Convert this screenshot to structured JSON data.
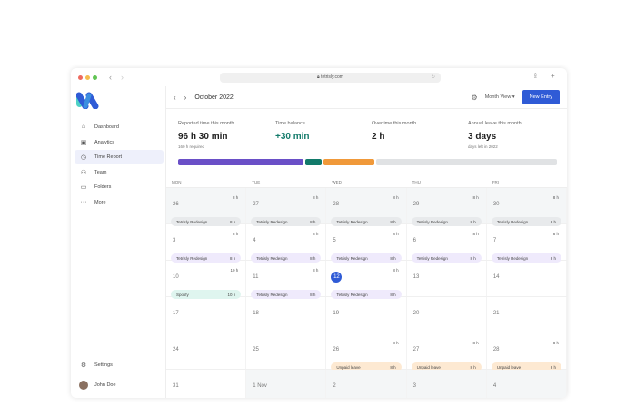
{
  "browser": {
    "url": "tetrisly.com",
    "back": "‹",
    "forward": "›"
  },
  "colors": {
    "accent": "#2f5bd6",
    "reported": "#6a4fc7",
    "balance": "#127a6a",
    "overtime": "#f0993a",
    "remaining": "#e0e2e4",
    "project": "#efeafc",
    "past": "#e8eaec",
    "spotify": "#dff5ef",
    "leave": "#fde9d2"
  },
  "sidebar": {
    "items": [
      {
        "label": "Dashboard",
        "icon": "home-icon"
      },
      {
        "label": "Analytics",
        "icon": "chart-icon"
      },
      {
        "label": "Time Report",
        "icon": "clock-icon",
        "active": true
      },
      {
        "label": "Team",
        "icon": "users-icon"
      },
      {
        "label": "Folders",
        "icon": "folder-icon"
      },
      {
        "label": "More",
        "icon": "more-icon"
      }
    ],
    "settings": "Settings",
    "user": "John Doe"
  },
  "header": {
    "month": "October 2022",
    "view": "Month View",
    "new_entry": "New Entry"
  },
  "stats": [
    {
      "label": "Reported time this month",
      "value": "96 h 30 min",
      "sub": "160 h required"
    },
    {
      "label": "Time balance",
      "value": "+30 min"
    },
    {
      "label": "Overtime this month",
      "value": "2 h"
    },
    {
      "label": "Annual leave this month",
      "value": "3 days",
      "sub": "days left in 2022"
    }
  ],
  "weekdays": [
    "MON",
    "TUE",
    "WED",
    "THU",
    "FRI"
  ],
  "weeks": [
    [
      {
        "d": "26",
        "h": "8 h",
        "e": "Tetrisly Redesign",
        "eh": "8 h",
        "t": "past",
        "g": 1
      },
      {
        "d": "27",
        "h": "8 h",
        "e": "Tetrisly Redesign",
        "eh": "8 h",
        "t": "past",
        "g": 1
      },
      {
        "d": "28",
        "h": "8 h",
        "e": "Tetrisly Redesign",
        "eh": "8 h",
        "t": "past",
        "g": 1
      },
      {
        "d": "29",
        "h": "8 h",
        "e": "Tetrisly Redesign",
        "eh": "8 h",
        "t": "past",
        "g": 1
      },
      {
        "d": "30",
        "h": "8 h",
        "e": "Tetrisly Redesign",
        "eh": "8 h",
        "t": "past",
        "g": 1
      }
    ],
    [
      {
        "d": "3",
        "h": "8 h",
        "e": "Tetrisly Redesign",
        "eh": "8 h",
        "t": "project"
      },
      {
        "d": "4",
        "h": "8 h",
        "e": "Tetrisly Redesign",
        "eh": "8 h",
        "t": "project"
      },
      {
        "d": "5",
        "h": "8 h",
        "e": "Tetrisly Redesign",
        "eh": "8 h",
        "t": "project"
      },
      {
        "d": "6",
        "h": "8 h",
        "e": "Tetrisly Redesign",
        "eh": "8 h",
        "t": "project"
      },
      {
        "d": "7",
        "h": "8 h",
        "e": "Tetrisly Redesign",
        "eh": "8 h",
        "t": "project"
      }
    ],
    [
      {
        "d": "10",
        "h": "10 h",
        "e": "Spotify",
        "eh": "10 h",
        "t": "spotify"
      },
      {
        "d": "11",
        "h": "8 h",
        "e": "Tetrisly Redesign",
        "eh": "8 h",
        "t": "project"
      },
      {
        "d": "12",
        "h": "8 h",
        "e": "Tetrisly Redesign",
        "eh": "8 h",
        "t": "project",
        "today": 1
      },
      {
        "d": "13"
      },
      {
        "d": "14"
      }
    ],
    [
      {
        "d": "17"
      },
      {
        "d": "18"
      },
      {
        "d": "19"
      },
      {
        "d": "20"
      },
      {
        "d": "21"
      }
    ],
    [
      {
        "d": "24"
      },
      {
        "d": "25"
      },
      {
        "d": "26",
        "h": "8 h",
        "e": "Unpaid leave",
        "eh": "8 h",
        "t": "leave"
      },
      {
        "d": "27",
        "h": "8 h",
        "e": "Unpaid leave",
        "eh": "8 h",
        "t": "leave"
      },
      {
        "d": "28",
        "h": "8 h",
        "e": "Unpaid leave",
        "eh": "8 h",
        "t": "leave"
      }
    ],
    [
      {
        "d": "31"
      },
      {
        "d": "1 Nov",
        "g": 1
      },
      {
        "d": "2",
        "g": 1
      },
      {
        "d": "3",
        "g": 1
      },
      {
        "d": "4",
        "g": 1
      }
    ]
  ]
}
